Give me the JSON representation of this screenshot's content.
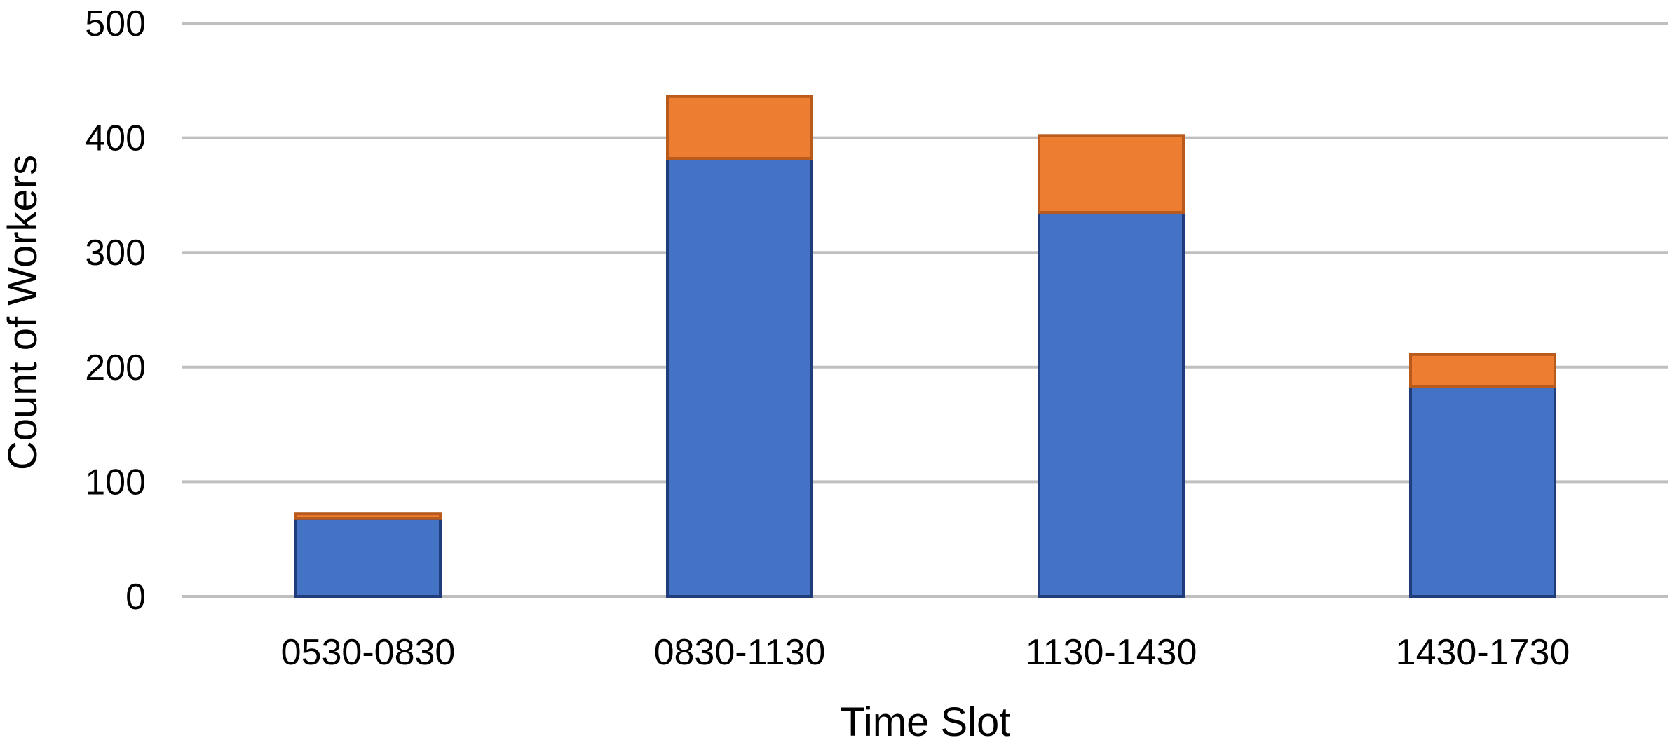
{
  "chart_data": {
    "type": "bar",
    "stacked": true,
    "categories": [
      "0530-0830",
      "0830-1130",
      "1130-1430",
      "1430-1730"
    ],
    "series": [
      {
        "color": "#4472c4",
        "stroke": "#1f3d7a",
        "values": [
          68,
          382,
          335,
          183
        ]
      },
      {
        "color": "#ed7d31",
        "stroke": "#b85a1c",
        "values": [
          4,
          54,
          67,
          28
        ]
      }
    ],
    "title": "",
    "xlabel": "Time Slot",
    "ylabel": "Count of Workers",
    "ylim": [
      0,
      500
    ],
    "yticks": [
      0,
      100,
      200,
      300,
      400,
      500
    ],
    "grid": true,
    "legend": "none"
  }
}
